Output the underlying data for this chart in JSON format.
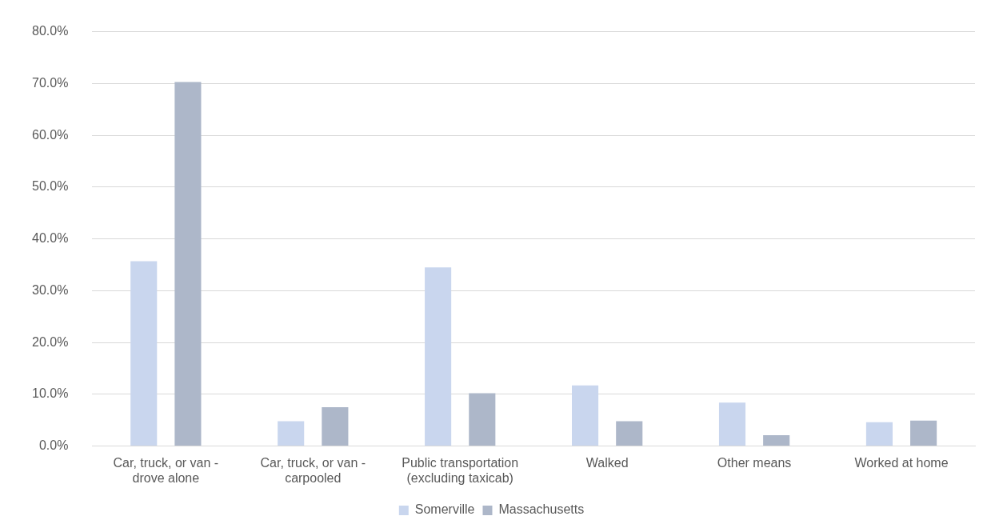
{
  "chart_data": {
    "type": "bar",
    "categories": [
      "Car, truck, or van -\ndrove alone",
      "Car, truck, or van -\ncarpooled",
      "Public transportation\n(excluding taxicab)",
      "Walked",
      "Other means",
      "Worked at home"
    ],
    "series": [
      {
        "name": "Somerville",
        "color": "#c9d6ee",
        "values": [
          35.7,
          4.8,
          34.5,
          11.7,
          8.4,
          4.6
        ]
      },
      {
        "name": "Massachusetts",
        "color": "#adb7c9",
        "values": [
          70.3,
          7.5,
          10.2,
          4.8,
          2.1,
          4.9
        ]
      }
    ],
    "ylim": [
      0,
      80
    ],
    "yticks": [
      {
        "value": 0,
        "label": "0.0%"
      },
      {
        "value": 10,
        "label": "10.0%"
      },
      {
        "value": 20,
        "label": "20.0%"
      },
      {
        "value": 30,
        "label": "30.0%"
      },
      {
        "value": 40,
        "label": "40.0%"
      },
      {
        "value": 50,
        "label": "50.0%"
      },
      {
        "value": 60,
        "label": "60.0%"
      },
      {
        "value": 70,
        "label": "70.0%"
      },
      {
        "value": 80,
        "label": "80.0%"
      }
    ],
    "grid": "y",
    "legend": "bottom"
  }
}
